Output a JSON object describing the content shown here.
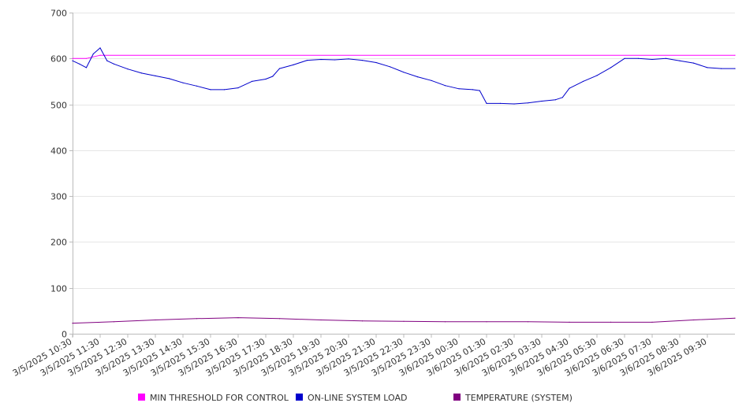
{
  "chart_data": {
    "type": "line",
    "title": "",
    "xlabel": "",
    "ylabel": "",
    "ylim": [
      0,
      700
    ],
    "yticks": [
      0,
      100,
      200,
      300,
      400,
      500,
      600,
      700
    ],
    "grid": true,
    "legend_position": "bottom",
    "xticks": [
      "3/5/2025 10:30",
      "3/5/2025 11:30",
      "3/5/2025 12:30",
      "3/5/2025 13:30",
      "3/5/2025 14:30",
      "3/5/2025 15:30",
      "3/5/2025 16:30",
      "3/5/2025 17:30",
      "3/5/2025 18:30",
      "3/5/2025 19:30",
      "3/5/2025 20:30",
      "3/5/2025 21:30",
      "3/5/2025 22:30",
      "3/5/2025 23:30",
      "3/6/2025 00:30",
      "3/6/2025 01:30",
      "3/6/2025 02:30",
      "3/6/2025 03:30",
      "3/6/2025 04:30",
      "3/6/2025 05:30",
      "3/6/2025 06:30",
      "3/6/2025 07:30",
      "3/6/2025 08:30",
      "3/6/2025 09:30"
    ],
    "series": [
      {
        "name": "MIN THRESHOLD FOR CONTROL",
        "color": "#ff00ff",
        "x": [
          "3/5/2025 10:30",
          "3/5/2025 11:00",
          "3/5/2025 11:30",
          "3/6/2025 10:30"
        ],
        "values": [
          600,
          600,
          607,
          607
        ]
      },
      {
        "name": "ON-LINE SYSTEM LOAD",
        "color": "#0000cc",
        "x": [
          "3/5/2025 10:30",
          "3/5/2025 10:45",
          "3/5/2025 11:00",
          "3/5/2025 11:15",
          "3/5/2025 11:30",
          "3/5/2025 11:45",
          "3/5/2025 12:00",
          "3/5/2025 12:30",
          "3/5/2025 13:00",
          "3/5/2025 13:30",
          "3/5/2025 14:00",
          "3/5/2025 14:30",
          "3/5/2025 15:00",
          "3/5/2025 15:30",
          "3/5/2025 16:00",
          "3/5/2025 16:30",
          "3/5/2025 17:00",
          "3/5/2025 17:30",
          "3/5/2025 17:45",
          "3/5/2025 18:00",
          "3/5/2025 18:30",
          "3/5/2025 19:00",
          "3/5/2025 19:30",
          "3/5/2025 20:00",
          "3/5/2025 20:30",
          "3/5/2025 21:00",
          "3/5/2025 21:30",
          "3/5/2025 22:00",
          "3/5/2025 22:30",
          "3/5/2025 23:00",
          "3/5/2025 23:30",
          "3/6/2025 00:00",
          "3/6/2025 00:30",
          "3/6/2025 01:00",
          "3/6/2025 01:15",
          "3/6/2025 01:30",
          "3/6/2025 02:00",
          "3/6/2025 02:30",
          "3/6/2025 03:00",
          "3/6/2025 03:30",
          "3/6/2025 04:00",
          "3/6/2025 04:15",
          "3/6/2025 04:30",
          "3/6/2025 05:00",
          "3/6/2025 05:30",
          "3/6/2025 06:00",
          "3/6/2025 06:30",
          "3/6/2025 07:00",
          "3/6/2025 07:30",
          "3/6/2025 08:00",
          "3/6/2025 08:30",
          "3/6/2025 09:00",
          "3/6/2025 09:30",
          "3/6/2025 10:00",
          "3/6/2025 10:30"
        ],
        "values": [
          595,
          588,
          580,
          610,
          623,
          595,
          588,
          577,
          568,
          562,
          556,
          547,
          540,
          532,
          532,
          536,
          550,
          555,
          561,
          578,
          586,
          596,
          598,
          597,
          599,
          596,
          591,
          582,
          570,
          560,
          552,
          541,
          534,
          532,
          530,
          502,
          502,
          501,
          503,
          507,
          510,
          515,
          535,
          550,
          563,
          580,
          600,
          600,
          598,
          600,
          595,
          590,
          580,
          578,
          578
        ]
      },
      {
        "name": "TEMPERATURE (SYSTEM)",
        "color": "#800080",
        "x": [
          "3/5/2025 10:30",
          "3/5/2025 12:00",
          "3/5/2025 13:30",
          "3/5/2025 15:00",
          "3/5/2025 16:30",
          "3/5/2025 18:00",
          "3/5/2025 19:30",
          "3/5/2025 21:00",
          "3/5/2025 22:30",
          "3/6/2025 00:00",
          "3/6/2025 01:30",
          "3/6/2025 03:00",
          "3/6/2025 04:30",
          "3/6/2025 06:00",
          "3/6/2025 07:30",
          "3/6/2025 09:00",
          "3/6/2025 10:30"
        ],
        "values": [
          23,
          26,
          30,
          33,
          35,
          33,
          30,
          28,
          27,
          26,
          26,
          26,
          25,
          25,
          25,
          30,
          34
        ]
      }
    ]
  }
}
